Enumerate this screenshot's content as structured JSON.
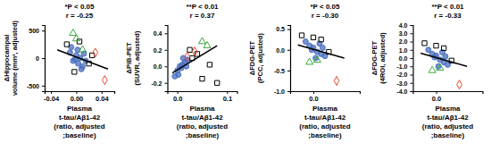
{
  "chart_data": [
    {
      "type": "scatter",
      "annotations": [
        "*P < 0.05",
        "r = -0.25"
      ],
      "y_label": [
        "ΔHippocampal",
        "volume (mm³, adjusted)"
      ],
      "x_label": [
        "Plasma",
        "t-tau/Aβ1-42",
        "(ratio, adjusted",
        ";baseline)"
      ],
      "xlim": [
        -0.05,
        0.06
      ],
      "xticks": [
        {
          "value": -0.04,
          "label": "-0.04"
        },
        {
          "value": 0,
          "label": "0.00"
        },
        {
          "value": 0.04,
          "label": "0.04"
        }
      ],
      "ylim": [
        -600,
        600
      ],
      "yticks": [
        -500,
        0,
        500
      ],
      "series": [
        {
          "color": "#4a6fc0",
          "marker": "circle",
          "x": [
            -0.01,
            -0.005,
            0,
            0.003,
            0.006,
            0.01,
            0.012,
            -0.008,
            0.002,
            0.008,
            0.015,
            -0.002
          ],
          "values": [
            100,
            -50,
            50,
            -100,
            0,
            -150,
            80,
            200,
            150,
            -200,
            -50,
            -20
          ]
        },
        {
          "color": "#000000",
          "marker": "square",
          "x": [
            -0.015,
            0.005,
            0.02,
            0.025,
            -0.003
          ],
          "values": [
            250,
            300,
            -100,
            50,
            -250
          ]
        },
        {
          "color": "#3aa83a",
          "marker": "triangle",
          "x": [
            -0.005,
            0,
            0.01
          ],
          "values": [
            450,
            350,
            150
          ]
        },
        {
          "color": "#e8452c",
          "marker": "diamond",
          "x": [
            0.03,
            0.045
          ],
          "values": [
            100,
            -400
          ]
        },
        {
          "type": "line",
          "color": "#000000",
          "line_style": "solid",
          "x": [
            -0.03,
            0.05
          ],
          "values": [
            150,
            -200
          ]
        }
      ]
    },
    {
      "type": "scatter",
      "annotations": [
        "**P < 0.01",
        "r = 0.37"
      ],
      "y_label": [
        "ΔPiB-PET",
        "(SUVR, adjusted)"
      ],
      "x_label": [
        "Plasma",
        "t-tau/Aβ1-42",
        "(ratio, adjusted",
        ";baseline)"
      ],
      "xlim": [
        -0.02,
        0.12
      ],
      "xticks": [
        {
          "value": 0,
          "label": "0.0"
        },
        {
          "value": 0.1,
          "label": "0.1"
        }
      ],
      "ylim": [
        -0.3,
        0.5
      ],
      "yticks": [
        -0.2,
        {
          "value": 0,
          "label": "0.0"
        },
        0.2,
        0.4
      ],
      "series": [
        {
          "color": "#4a6fc0",
          "marker": "circle",
          "x": [
            0,
            0.005,
            0.01,
            0.002,
            0.015,
            0.008,
            0.02,
            -0.005,
            0.012,
            0.018
          ],
          "values": [
            -0.05,
            0,
            0.02,
            -0.1,
            0.05,
            -0.02,
            0.08,
            -0.12,
            0.1,
            0
          ]
        },
        {
          "color": "#000000",
          "marker": "square",
          "x": [
            0.03,
            0.04,
            0.05,
            0.065,
            0.08,
            0.025
          ],
          "values": [
            0.1,
            0.15,
            -0.15,
            0.02,
            -0.2,
            0.2
          ]
        },
        {
          "color": "#3aa83a",
          "marker": "triangle",
          "x": [
            0.05,
            0.06
          ],
          "values": [
            0.3,
            0.25
          ]
        },
        {
          "color": "#e8452c",
          "marker": "diamond",
          "x": [
            0.02,
            0.035
          ],
          "values": [
            0.12,
            0.18
          ]
        },
        {
          "type": "line",
          "color": "#000000",
          "line_style": "solid",
          "x": [
            -0.01,
            0.08
          ],
          "values": [
            -0.08,
            0.25
          ]
        }
      ]
    },
    {
      "type": "scatter",
      "annotations": [
        "*P < 0.05",
        "r = -0.30"
      ],
      "y_label": [
        "ΔFDG-PET",
        "(PCC, adjusted)"
      ],
      "x_label": [
        "Plasma",
        "t-tau/Aβ1-42",
        "(ratio, adjusted",
        ";baseline)"
      ],
      "xlim": [
        -0.03,
        0.06
      ],
      "xticks": [
        {
          "value": 0,
          "label": "0.0"
        }
      ],
      "ylim": [
        -1.0,
        0.6
      ],
      "yticks": [
        {
          "value": -1,
          "label": "-1.0"
        },
        -0.5,
        {
          "value": 0,
          "label": "0.0"
        },
        0.5
      ],
      "series": [
        {
          "color": "#4a6fc0",
          "marker": "circle",
          "x": [
            -0.01,
            -0.005,
            0,
            0.005,
            0.01,
            0.015,
            -0.002,
            0.008,
            0.003,
            0.012
          ],
          "values": [
            0.2,
            0.1,
            0.05,
            -0.05,
            -0.1,
            -0.15,
            0,
            0.15,
            -0.2,
            0.05
          ]
        },
        {
          "color": "#000000",
          "marker": "square",
          "x": [
            -0.015,
            0,
            0.02,
            0.01
          ],
          "values": [
            0.35,
            0.3,
            -0.05,
            0.25
          ]
        },
        {
          "color": "#3aa83a",
          "marker": "triangle",
          "x": [
            -0.005,
            0.005
          ],
          "values": [
            -0.3,
            -0.25
          ]
        },
        {
          "color": "#e8452c",
          "marker": "diamond",
          "x": [
            0.03
          ],
          "values": [
            -0.75
          ]
        },
        {
          "type": "line",
          "color": "#000000",
          "line_style": "solid",
          "x": [
            -0.02,
            0.04
          ],
          "values": [
            0.12,
            -0.2
          ]
        }
      ]
    },
    {
      "type": "scatter",
      "annotations": [
        "**P < 0.01",
        "r = -0.33"
      ],
      "y_label": [
        "ΔFDG-PET",
        "(4ROI, adjusted)"
      ],
      "x_label": [
        "Plasma",
        "t-tau/Aβ1-42",
        "(ratio, adjusted",
        ";baseline)"
      ],
      "xlim": [
        -0.03,
        0.06
      ],
      "xticks": [
        {
          "value": 0,
          "label": "0.0"
        }
      ],
      "ylim": [
        -4,
        4
      ],
      "yticks": [
        {
          "value": -4,
          "label": "-4.0"
        },
        {
          "value": -3,
          "label": "-3.0"
        },
        {
          "value": -2,
          "label": "-2.0"
        },
        {
          "value": -1,
          "label": "-1.0"
        },
        {
          "value": 0,
          "label": "0.0"
        },
        {
          "value": 1,
          "label": "1.0"
        },
        {
          "value": 2,
          "label": "2.0"
        },
        {
          "value": 3,
          "label": "3.0"
        },
        {
          "value": 4,
          "label": "4.0"
        }
      ],
      "series": [
        {
          "color": "#4a6fc0",
          "marker": "circle",
          "x": [
            -0.01,
            -0.005,
            0,
            0.005,
            0.01,
            0.015,
            -0.002,
            0.008,
            0.003,
            0.012
          ],
          "values": [
            1.0,
            0.5,
            0.3,
            -0.2,
            -0.5,
            -0.8,
            0.1,
            0.7,
            -1.0,
            0.2
          ]
        },
        {
          "color": "#000000",
          "marker": "square",
          "x": [
            -0.015,
            0,
            0.02,
            0.01
          ],
          "values": [
            1.8,
            1.5,
            -0.3,
            1.2
          ]
        },
        {
          "color": "#3aa83a",
          "marker": "triangle",
          "x": [
            -0.005,
            0.005
          ],
          "values": [
            -1.5,
            -1.2
          ]
        },
        {
          "color": "#e8452c",
          "marker": "diamond",
          "x": [
            0.03
          ],
          "values": [
            -3.2
          ]
        },
        {
          "type": "line",
          "color": "#000000",
          "line_style": "solid",
          "x": [
            -0.02,
            0.04
          ],
          "values": [
            0.6,
            -1.0
          ]
        }
      ]
    }
  ]
}
